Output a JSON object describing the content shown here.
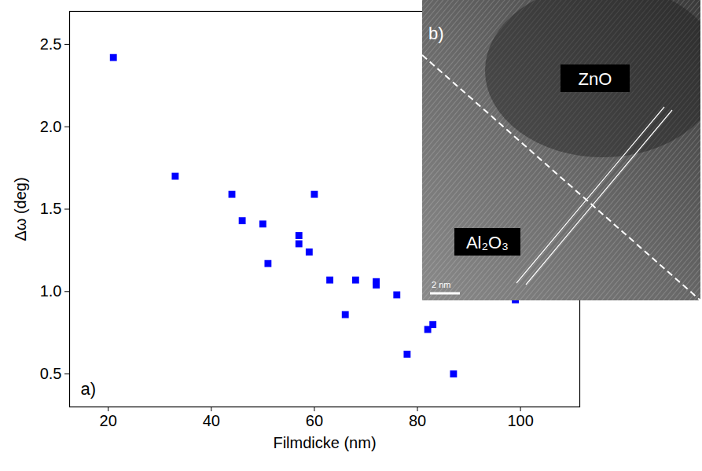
{
  "chart_data": {
    "type": "scatter",
    "panel_label": "a)",
    "x_label": "Filmdicke (nm)",
    "y_label": "Δω (deg)",
    "x": [
      21,
      33,
      44,
      46,
      50,
      51,
      57,
      57,
      59,
      60,
      63,
      66,
      68,
      72,
      72,
      76,
      78,
      82,
      83,
      87,
      99
    ],
    "values": [
      2.42,
      1.7,
      1.59,
      1.43,
      1.41,
      1.17,
      1.34,
      1.29,
      1.24,
      1.59,
      1.07,
      0.86,
      1.07,
      1.06,
      1.04,
      0.98,
      0.62,
      0.77,
      0.8,
      0.5,
      0.95
    ],
    "color": "#0000ff",
    "marker": "square",
    "xlim": [
      12.5,
      111.5
    ],
    "xticks": [
      20,
      40,
      60,
      80,
      100
    ],
    "ylim": [
      0.3,
      2.7
    ],
    "yticks": [
      0.5,
      {
        "value": 1,
        "label": "1.0"
      },
      1.5,
      {
        "value": 2,
        "label": "2.0"
      },
      2.5
    ]
  },
  "inset": {
    "panel_label": "b)",
    "labels": [
      "ZnO",
      "Al₂O₃"
    ],
    "scale_bar": "2 nm"
  }
}
